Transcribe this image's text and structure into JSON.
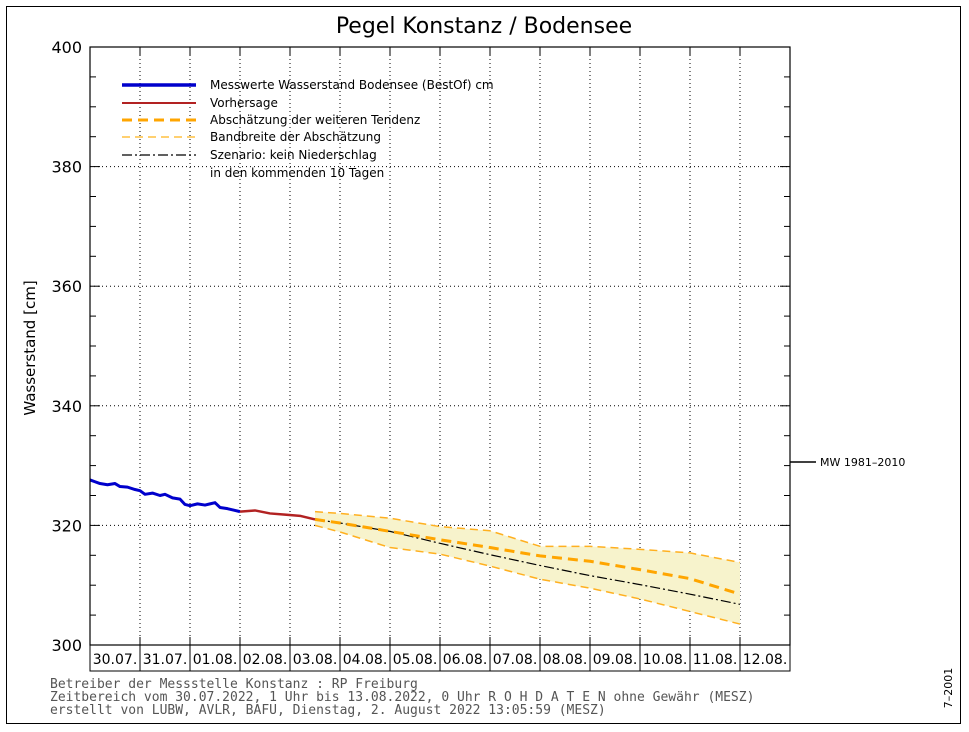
{
  "chart_data": {
    "type": "line",
    "title": "Pegel Konstanz / Bodensee",
    "ylabel": "Wasserstand [cm]",
    "ylim": [
      300,
      400
    ],
    "yticks": [
      300,
      320,
      340,
      360,
      380,
      400
    ],
    "x_range": [
      "30.07.",
      "13.08."
    ],
    "x_tick_labels": [
      "30.07.",
      "31.07.",
      "01.08.",
      "02.08.",
      "03.08.",
      "04.08.",
      "05.08.",
      "06.08.",
      "07.08.",
      "08.08.",
      "09.08.",
      "10.08.",
      "11.08.",
      "12.08."
    ],
    "grid": true,
    "legend_position": "top-left",
    "reference_line": {
      "label": "MW 1981–2010",
      "value": 330.6
    },
    "legend": [
      {
        "key": "measured",
        "label": "Messwerte Wasserstand Bodensee   (BestOf)   cm",
        "color": "#0000cc",
        "style": "solid-thick"
      },
      {
        "key": "forecast",
        "label": "Vorhersage",
        "color": "#b22222",
        "style": "solid"
      },
      {
        "key": "estimate",
        "label": "Abschätzung der weiteren Tendenz",
        "color": "#ffa500",
        "style": "dashed-thick"
      },
      {
        "key": "band",
        "label": "Bandbreite der Abschätzung",
        "color": "#ffc040",
        "style": "dashed"
      },
      {
        "key": "scenario",
        "label": "Szenario: kein Niederschlag",
        "label2": "in den kommenden 10 Tagen",
        "color": "#000000",
        "style": "dashdot"
      }
    ],
    "series": [
      {
        "name": "Messwerte Wasserstand Bodensee (BestOf)",
        "x_days": [
          0.0,
          0.1,
          0.2,
          0.35,
          0.5,
          0.6,
          0.75,
          0.9,
          1.0,
          1.1,
          1.25,
          1.4,
          1.5,
          1.65,
          1.8,
          1.9,
          2.0,
          2.15,
          2.3,
          2.4,
          2.5,
          2.6,
          2.75,
          2.9,
          3.0
        ],
        "y": [
          327.6,
          327.3,
          327.0,
          326.8,
          327.0,
          326.5,
          326.4,
          326.0,
          325.8,
          325.2,
          325.4,
          325.0,
          325.2,
          324.6,
          324.4,
          323.5,
          323.3,
          323.6,
          323.4,
          323.6,
          323.8,
          323.0,
          322.8,
          322.5,
          322.3
        ]
      },
      {
        "name": "Vorhersage",
        "x_days": [
          3.0,
          3.3,
          3.6,
          3.9,
          4.2,
          4.5
        ],
        "y": [
          322.3,
          322.5,
          322.0,
          321.8,
          321.6,
          321.0
        ]
      },
      {
        "name": "Abschätzung der weiteren Tendenz",
        "x_days": [
          4.5,
          5.0,
          6.0,
          7.0,
          8.0,
          9.0,
          10.0,
          11.0,
          12.0,
          13.0
        ],
        "y": [
          321.0,
          320.4,
          319.0,
          317.6,
          316.3,
          314.9,
          314.0,
          312.6,
          311.1,
          308.5
        ]
      },
      {
        "name": "Bandbreite oben",
        "x_days": [
          4.5,
          5.0,
          6.0,
          7.0,
          8.0,
          9.0,
          10.0,
          11.0,
          12.0,
          13.0
        ],
        "y": [
          322.3,
          322.0,
          321.2,
          319.8,
          319.1,
          316.5,
          316.5,
          316.0,
          315.4,
          313.8
        ]
      },
      {
        "name": "Bandbreite unten",
        "x_days": [
          4.5,
          5.0,
          6.0,
          7.0,
          8.0,
          9.0,
          10.0,
          11.0,
          12.0,
          13.0
        ],
        "y": [
          320.0,
          318.9,
          316.3,
          315.2,
          313.2,
          311.0,
          309.5,
          307.7,
          305.6,
          303.5
        ]
      },
      {
        "name": "Szenario: kein Niederschlag",
        "x_days": [
          4.5,
          5.0,
          6.0,
          7.0,
          8.0,
          9.0,
          10.0,
          11.0,
          12.0,
          13.0
        ],
        "y": [
          321.0,
          320.4,
          319.0,
          317.0,
          315.1,
          313.3,
          311.6,
          310.1,
          308.5,
          306.8
        ]
      }
    ]
  },
  "footer": {
    "line1": "Betreiber der Messstelle Konstanz : RP Freiburg",
    "line2": "Zeitbereich vom 30.07.2022, 1 Uhr bis 13.08.2022, 0 Uhr    R O H D A T E N  ohne Gewähr (MESZ)",
    "line3": "erstellt von LUBW, AVLR, BAFU, Dienstag, 2. August 2022 13:05:59 (MESZ)"
  },
  "side_code": "7–2001"
}
